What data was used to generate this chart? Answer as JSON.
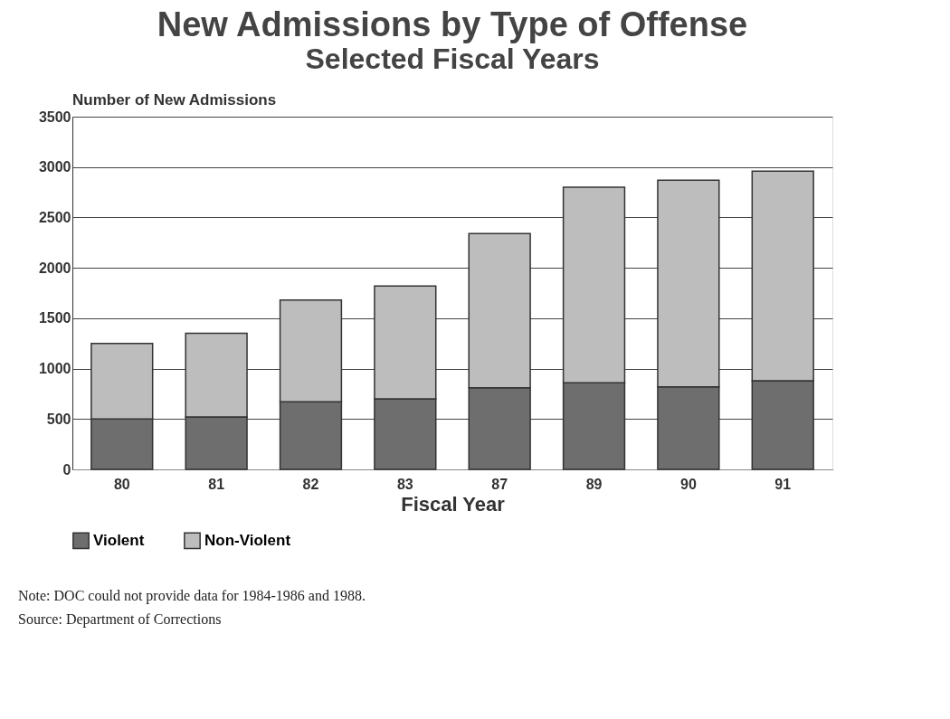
{
  "chart_data": {
    "type": "bar",
    "title": "New Admissions by Type of Offense",
    "subtitle": "Selected Fiscal Years",
    "ylabel": "Number of New Admissions",
    "xlabel": "Fiscal Year",
    "categories": [
      "80",
      "81",
      "82",
      "83",
      "87",
      "89",
      "90",
      "91"
    ],
    "stacked": true,
    "series": [
      {
        "name": "Violent",
        "color": "#6e6e6e",
        "values": [
          500,
          520,
          670,
          700,
          810,
          860,
          820,
          880
        ]
      },
      {
        "name": "Non-Violent",
        "color": "#bdbdbd",
        "values": [
          750,
          830,
          1010,
          1120,
          1530,
          1940,
          2050,
          2080
        ]
      }
    ],
    "ylim": [
      0,
      3500
    ],
    "yticks": [
      0,
      500,
      1000,
      1500,
      2000,
      2500,
      3000,
      3500
    ],
    "grid": "y",
    "legend": "bottom",
    "annotations": [
      "Note:  DOC could not provide data for 1984-1986 and 1988.",
      "Source:  Department of Corrections"
    ]
  }
}
